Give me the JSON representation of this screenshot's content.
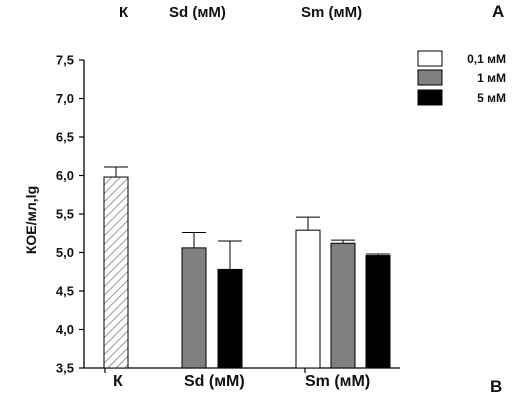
{
  "chart_data": {
    "type": "bar",
    "ylabel": "КОЕ/мл,lg",
    "ylim": [
      3.5,
      7.5
    ],
    "yticks": [
      "3,5",
      "4,0",
      "4,5",
      "5,0",
      "5,5",
      "6,0",
      "6,5",
      "7,0",
      "7,5"
    ],
    "group_labels": [
      "К",
      "Sd (мМ)",
      "Sm (мМ)"
    ],
    "legend": [
      "0,1 мМ",
      "1 мМ",
      "5 мМ"
    ],
    "legend_placement": "top-right",
    "grid": false,
    "bars": [
      {
        "group": "К",
        "style": "hatched",
        "value": 5.98,
        "error": 0.13
      },
      {
        "group": "Sd (мМ)",
        "series": "1 мМ",
        "value": 5.06,
        "error": 0.2
      },
      {
        "group": "Sd (мМ)",
        "series": "5 мМ",
        "value": 4.78,
        "error": 0.37
      },
      {
        "group": "Sm (мМ)",
        "series": "0,1 мМ",
        "value": 5.29,
        "error": 0.17
      },
      {
        "group": "Sm (мМ)",
        "series": "1 мМ",
        "value": 5.12,
        "error": 0.04
      },
      {
        "group": "Sm (мМ)",
        "series": "5 мМ",
        "value": 4.96,
        "error": 0.02
      }
    ],
    "colors": {
      "0,1 мМ": "#ffffff",
      "1 мМ": "#808080",
      "5 мМ": "#000000",
      "hatched": "#ffffff"
    }
  },
  "header": {
    "k": "К",
    "sd": "Sd (мМ)",
    "sm": "Sm (мМ)"
  },
  "panel_labels": {
    "top": "A",
    "bottom": "B"
  }
}
